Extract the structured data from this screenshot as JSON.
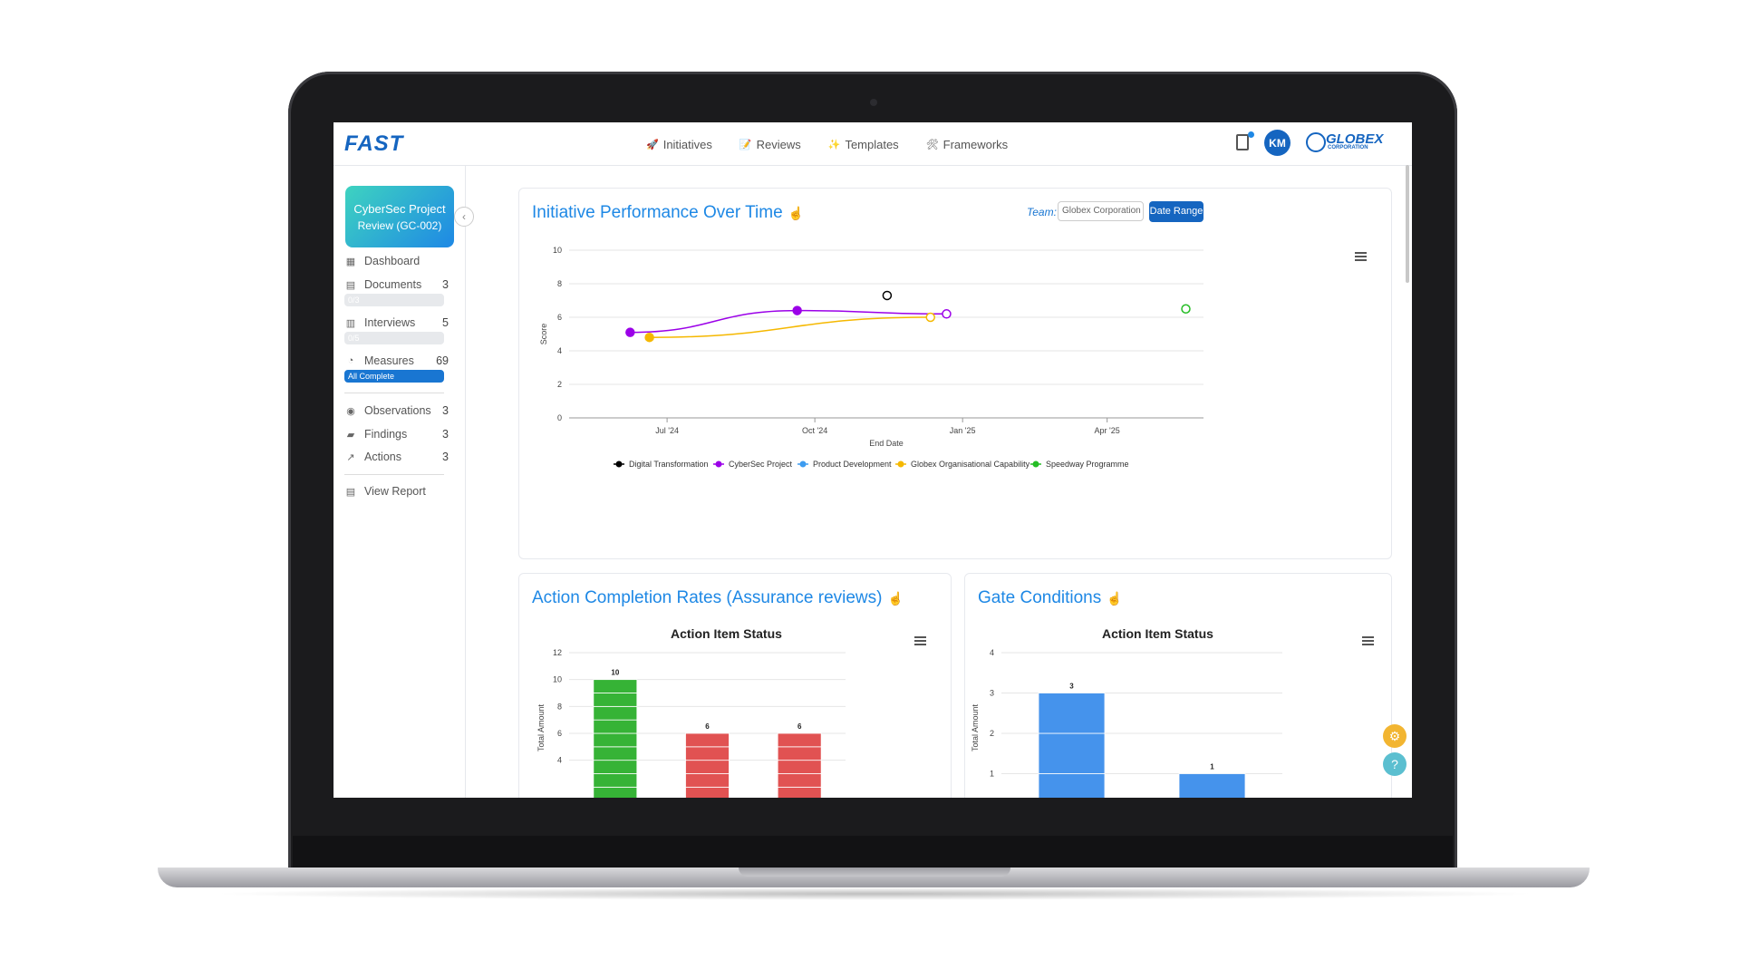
{
  "app": {
    "logo": "FAST"
  },
  "nav": {
    "links": [
      {
        "label": "Initiatives",
        "icon": "rocket-icon"
      },
      {
        "label": "Reviews",
        "icon": "memo-icon"
      },
      {
        "label": "Templates",
        "icon": "sparkles-icon"
      },
      {
        "label": "Frameworks",
        "icon": "tools-icon"
      }
    ],
    "avatar_initials": "KM",
    "org_logo_text": "GLOBEX",
    "org_logo_sub": "CORPORATION"
  },
  "sidebar": {
    "project_title": "CyberSec Project",
    "project_sub": "Review (GC-002)",
    "items": [
      {
        "label": "Dashboard",
        "icon": "grid-icon",
        "count": ""
      },
      {
        "label": "Documents",
        "icon": "document-icon",
        "count": "3",
        "progress": "0/3"
      },
      {
        "label": "Interviews",
        "icon": "calendar-icon",
        "count": "5",
        "progress": "0/5"
      },
      {
        "label": "Measures",
        "icon": "pie-icon",
        "count": "69",
        "progress": "All Complete"
      },
      {
        "label": "Observations",
        "icon": "eye-icon",
        "count": "3"
      },
      {
        "label": "Findings",
        "icon": "chat-icon",
        "count": "3"
      },
      {
        "label": "Actions",
        "icon": "arrow-icon",
        "count": "3"
      },
      {
        "label": "View Report",
        "icon": "report-icon",
        "count": ""
      }
    ]
  },
  "performance": {
    "title": "Initiative Performance Over Time",
    "team_label": "Team:",
    "team_value": "Globex Corporation",
    "date_button": "Date Range"
  },
  "action_card": {
    "title": "Action Completion Rates (Assurance reviews)"
  },
  "gate_card": {
    "title": "Gate Conditions"
  },
  "chart_data": [
    {
      "type": "line",
      "ylabel": "Score",
      "xlabel": "End Date",
      "ylim": [
        0,
        10
      ],
      "yticks": [
        "0",
        "2",
        "4",
        "6",
        "8",
        "10"
      ],
      "xticks": [
        "Jul '24",
        "Oct '24",
        "Jan '25",
        "Apr '25"
      ],
      "legend_position": "bottom",
      "series": [
        {
          "name": "Digital Transformation",
          "color": "#000000",
          "points": [
            {
              "x": "2024-11-15",
              "y": 7.3
            }
          ]
        },
        {
          "name": "CyberSec Project",
          "color": "#9b00e8",
          "points": [
            {
              "x": "2024-06-08",
              "y": 5.1
            },
            {
              "x": "2024-09-20",
              "y": 6.4
            },
            {
              "x": "2024-12-22",
              "y": 6.2
            }
          ]
        },
        {
          "name": "Product Development",
          "color": "#3d9cf0",
          "points": []
        },
        {
          "name": "Globex Organisational Capability",
          "color": "#f5b800",
          "points": [
            {
              "x": "2024-06-20",
              "y": 4.8
            },
            {
              "x": "2024-12-12",
              "y": 6.0
            }
          ]
        },
        {
          "name": "Speedway Programme",
          "color": "#25bd25",
          "points": [
            {
              "x": "2025-05-20",
              "y": 6.5
            }
          ]
        }
      ]
    },
    {
      "type": "bar",
      "title": "Action Item Status",
      "ylabel": "Total Amount",
      "yticks": [
        "4",
        "6",
        "8",
        "10",
        "12"
      ],
      "categories": [
        "",
        "",
        ""
      ],
      "series": [
        {
          "color": "#36b336",
          "values": [
            10,
            1,
            1
          ]
        },
        {
          "color": "#e15252",
          "values": [
            0,
            5,
            5
          ]
        }
      ],
      "data_labels": [
        "10",
        "6",
        "6"
      ]
    },
    {
      "type": "bar",
      "title": "Action Item Status",
      "ylabel": "Total Amount",
      "yticks": [
        "1",
        "2",
        "3",
        "4"
      ],
      "categories": [
        "",
        ""
      ],
      "series": [
        {
          "color": "#4593ec",
          "values": [
            3,
            1
          ]
        }
      ],
      "data_labels": [
        "3",
        "1"
      ]
    }
  ]
}
